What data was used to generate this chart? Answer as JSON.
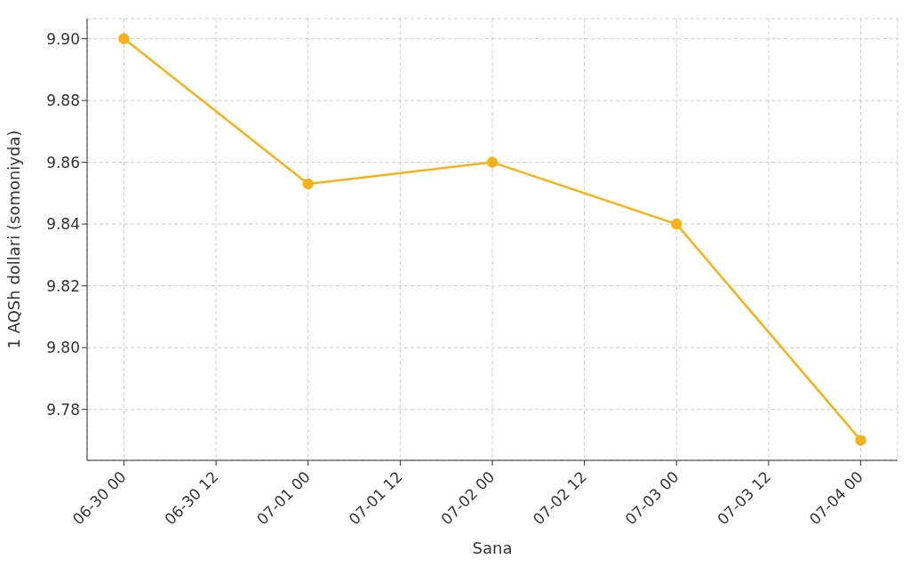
{
  "chart_data": {
    "type": "line",
    "xlabel": "Sana",
    "ylabel": "1 AQSh dollari (somoniyda)",
    "x": [
      "--06-30T00:00",
      "--07-01T00:00",
      "--07-02T00:00",
      "--07-03T00:00",
      "--07-04T00:00"
    ],
    "series": [
      {
        "color": "#f7b219",
        "values": [
          9.9,
          9.853,
          9.86,
          9.84,
          9.77
        ]
      }
    ],
    "xlim": [
      "--06-29T19:12",
      "--07-04T04:48"
    ],
    "xticks": [
      {
        "value": "--06-30T00:00",
        "label": "06-30 00"
      },
      {
        "value": "--06-30T12:00",
        "label": "06-30 12"
      },
      {
        "value": "--07-01T00:00",
        "label": "07-01 00"
      },
      {
        "value": "--07-01T12:00",
        "label": "07-01 12"
      },
      {
        "value": "--07-02T00:00",
        "label": "07-02 00"
      },
      {
        "value": "--07-02T12:00",
        "label": "07-02 12"
      },
      {
        "value": "--07-03T00:00",
        "label": "07-03 00"
      },
      {
        "value": "--07-03T12:00",
        "label": "07-03 12"
      },
      {
        "value": "--07-04T00:00",
        "label": "07-04 00"
      }
    ],
    "ylim": [
      9.7635,
      9.9065
    ],
    "yticks": [
      {
        "value": 9.78,
        "label": "9.78"
      },
      {
        "value": 9.8,
        "label": "9.80"
      },
      {
        "value": 9.82,
        "label": "9.82"
      },
      {
        "value": 9.84,
        "label": "9.84"
      },
      {
        "value": 9.86,
        "label": "9.86"
      },
      {
        "value": 9.88,
        "label": "9.88"
      },
      {
        "value": 9.9,
        "label": "9.90"
      }
    ],
    "grid": true,
    "marker": "circle",
    "line_style": "solid",
    "legend": false
  }
}
